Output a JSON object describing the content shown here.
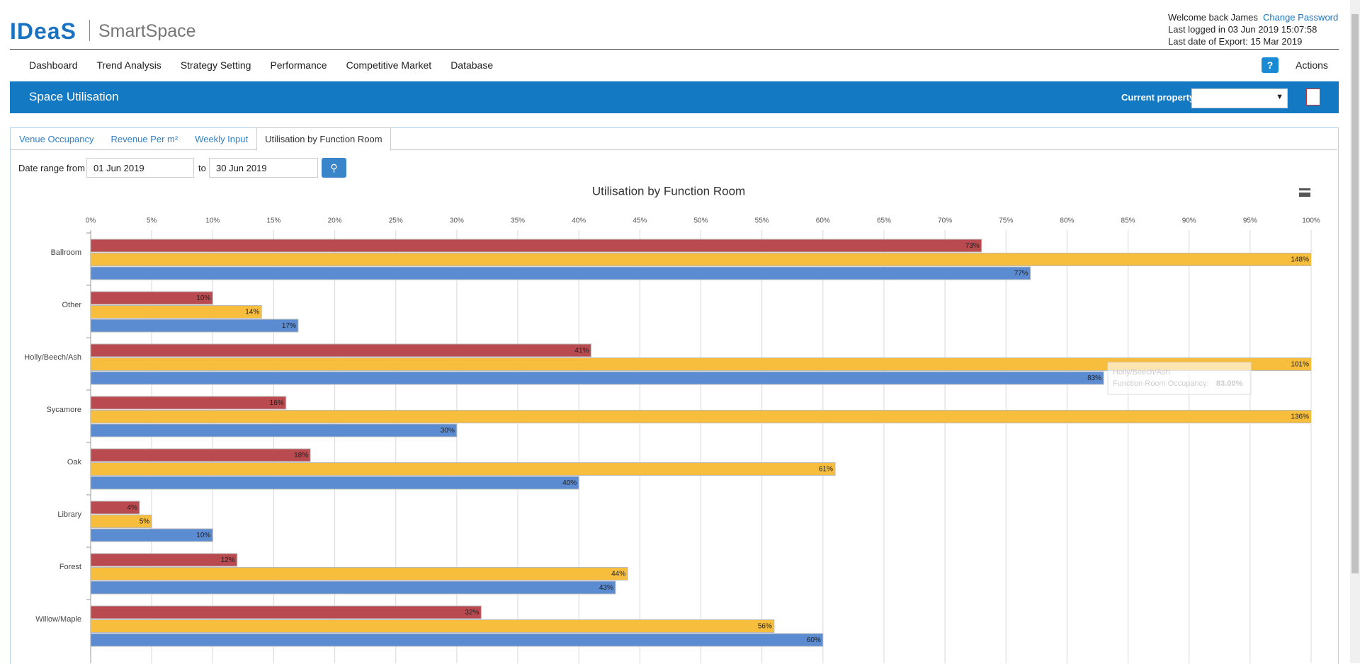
{
  "header": {
    "logo": "IDeaS",
    "product": "SmartSpace",
    "welcome": "Welcome back James",
    "change_password": "Change Password",
    "last_logged": "Last logged in 03 Jun 2019 15:07:58",
    "last_export": "Last date of Export: 15 Mar 2019"
  },
  "nav": [
    "Dashboard",
    "Trend Analysis",
    "Strategy Setting",
    "Performance",
    "Competitive Market",
    "Database"
  ],
  "help": "?",
  "actions": "Actions",
  "banner": {
    "title": "Space Utilisation",
    "property_label": "Current property"
  },
  "tabs": [
    "Venue Occupancy",
    "Revenue Per m²",
    "Weekly Input",
    "Utilisation by Function Room"
  ],
  "filter": {
    "from_label": "Date range from",
    "from": "01 Jun 2019",
    "to_label": "to",
    "to": "30 Jun 2019"
  },
  "chart_data": {
    "type": "hbar",
    "title": "Utilisation by Function Room",
    "categories": [
      "Ballroom",
      "Other",
      "Holly/Beech/Ash",
      "Sycamore",
      "Oak",
      "Library",
      "Forest",
      "Willow/Maple"
    ],
    "series": [
      {
        "color": "#b94a4f",
        "values": [
          73,
          10,
          41,
          16,
          18,
          4,
          12,
          32
        ],
        "value_labels": [
          "73%",
          "10%",
          "41%",
          "16%",
          "18%",
          "4%",
          "12%",
          "32%"
        ]
      },
      {
        "color": "#f7bd3d",
        "values": [
          148,
          14,
          101,
          136,
          61,
          5,
          44,
          56
        ],
        "value_labels": [
          "148%",
          "14%",
          "101%",
          "136%",
          "61%",
          "5%",
          "44%",
          "56%"
        ]
      },
      {
        "color": "#5b8bd0",
        "values": [
          77,
          17,
          83,
          30,
          40,
          10,
          43,
          60
        ],
        "value_labels": [
          "77%",
          "17%",
          "83%",
          "30%",
          "40%",
          "10%",
          "43%",
          "60%"
        ]
      }
    ],
    "xlim": [
      0,
      100
    ],
    "xticks": [
      {
        "value": 0,
        "label": "0%"
      },
      {
        "value": 5,
        "label": "5%"
      },
      {
        "value": 10,
        "label": "10%"
      },
      {
        "value": 15,
        "label": "15%"
      },
      {
        "value": 20,
        "label": "20%"
      },
      {
        "value": 25,
        "label": "25%"
      },
      {
        "value": 30,
        "label": "30%"
      },
      {
        "value": 35,
        "label": "35%"
      },
      {
        "value": 40,
        "label": "40%"
      },
      {
        "value": 45,
        "label": "45%"
      },
      {
        "value": 50,
        "label": "50%"
      },
      {
        "value": 55,
        "label": "55%"
      },
      {
        "value": 60,
        "label": "60%"
      },
      {
        "value": 65,
        "label": "65%"
      },
      {
        "value": 70,
        "label": "70%"
      },
      {
        "value": 75,
        "label": "75%"
      },
      {
        "value": 80,
        "label": "80%"
      },
      {
        "value": 85,
        "label": "85%"
      },
      {
        "value": 90,
        "label": "90%"
      },
      {
        "value": 95,
        "label": "95%"
      },
      {
        "value": 100,
        "label": "100%"
      }
    ],
    "grid": true,
    "tooltip": {
      "title": "Holly/Beech/Ash",
      "label": "Function Room Occupancy:",
      "value": "83.00%"
    }
  }
}
